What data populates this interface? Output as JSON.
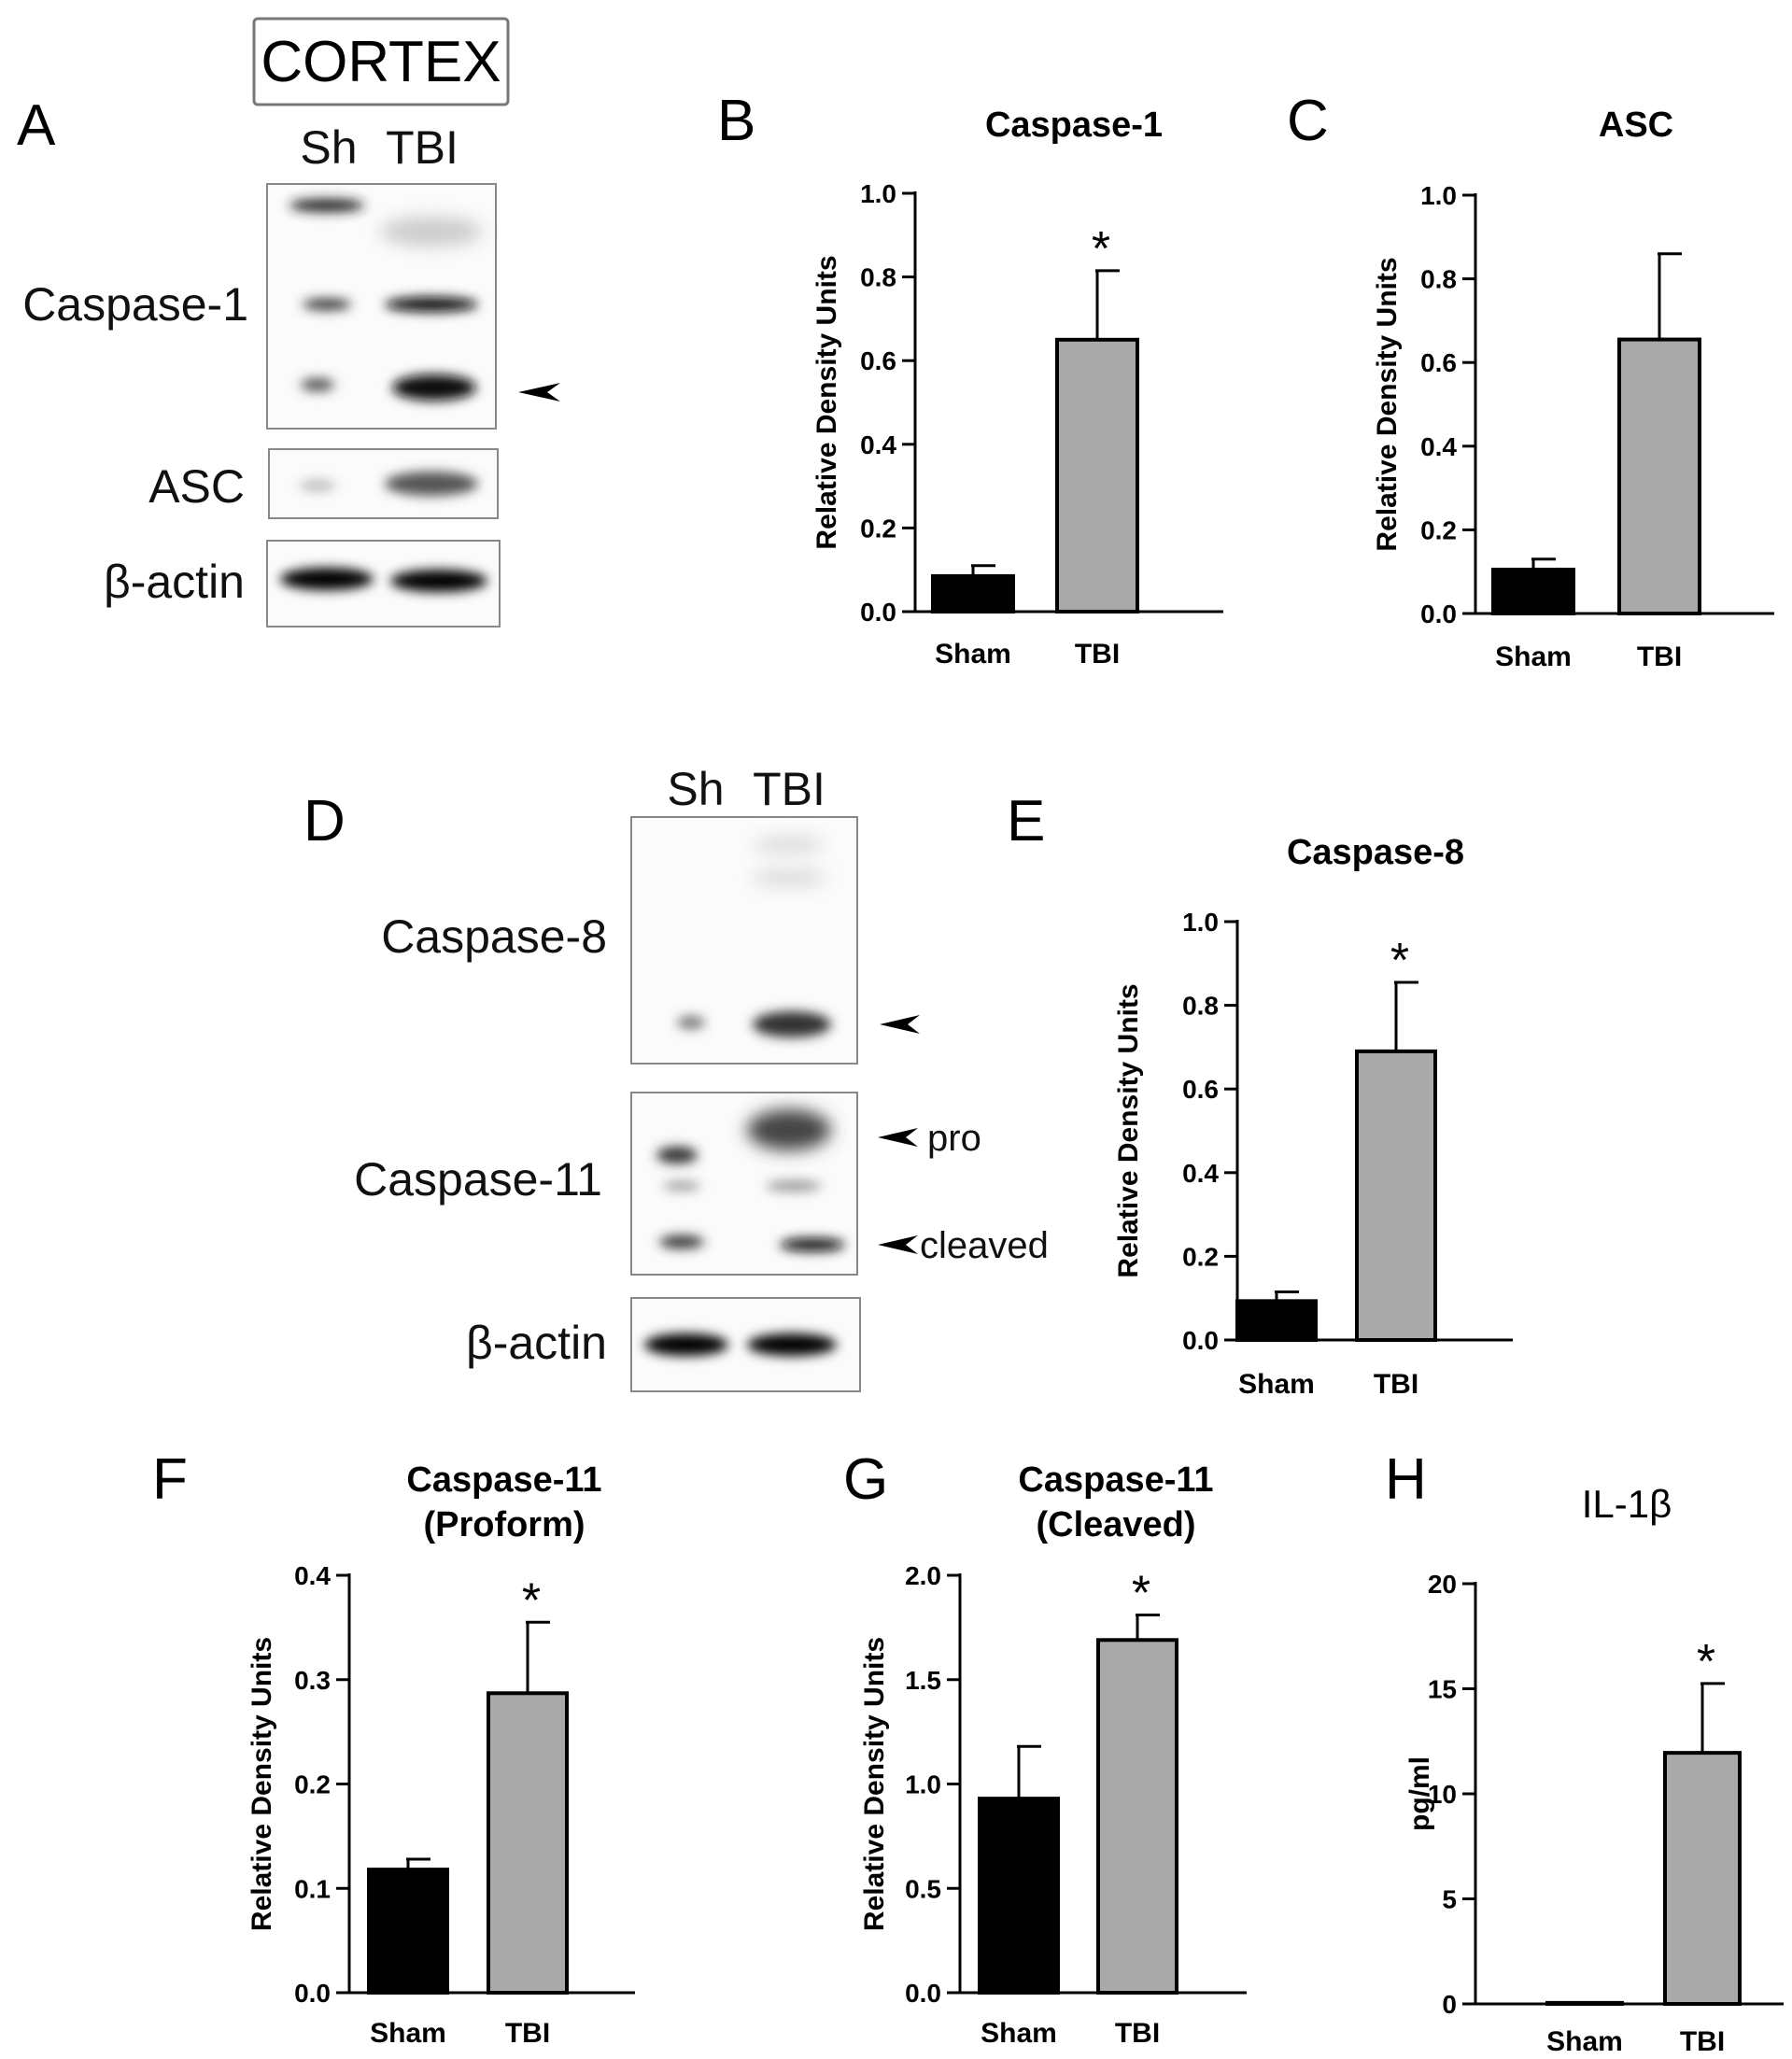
{
  "cortex_label": "CORTEX",
  "blot_A": {
    "letter": "A",
    "lanes": [
      "Sh",
      "TBI"
    ],
    "labels": [
      "Caspase-1",
      "ASC",
      "β-actin"
    ]
  },
  "blot_D": {
    "letter": "D",
    "lanes": [
      "Sh",
      "TBI"
    ],
    "labels": [
      "Caspase-8",
      "Caspase-11",
      "β-actin"
    ],
    "annotations": [
      "pro",
      "cleaved"
    ]
  },
  "colors": {
    "sham": "#000000",
    "tbi": "#a9a9a9",
    "axis": "#000000"
  },
  "chart_data": [
    {
      "letter": "B",
      "type": "bar",
      "title": "Caspase-1",
      "categories": [
        "Sham",
        "TBI"
      ],
      "values": [
        0.085,
        0.65
      ],
      "errors": [
        0.025,
        0.165
      ],
      "significant": [
        false,
        true
      ],
      "ylabel": "Relative Density Units",
      "ylim": [
        0,
        1.0
      ],
      "yticks": [
        "0.0",
        "0.2",
        "0.4",
        "0.6",
        "0.8",
        "1.0"
      ]
    },
    {
      "letter": "C",
      "type": "bar",
      "title": "ASC",
      "categories": [
        "Sham",
        "TBI"
      ],
      "values": [
        0.105,
        0.655
      ],
      "errors": [
        0.025,
        0.205
      ],
      "significant": [
        false,
        false
      ],
      "ylabel": "Relative Density Units",
      "ylim": [
        0,
        1.0
      ],
      "yticks": [
        "0.0",
        "0.2",
        "0.4",
        "0.6",
        "0.8",
        "1.0"
      ]
    },
    {
      "letter": "E",
      "type": "bar",
      "title": "Caspase-8",
      "categories": [
        "Sham",
        "TBI"
      ],
      "values": [
        0.093,
        0.69
      ],
      "errors": [
        0.022,
        0.165
      ],
      "significant": [
        false,
        true
      ],
      "ylabel": "Relative Density Units",
      "ylim": [
        0,
        1.0
      ],
      "yticks": [
        "0.0",
        "0.2",
        "0.4",
        "0.6",
        "0.8",
        "1.0"
      ]
    },
    {
      "letter": "F",
      "type": "bar",
      "title": "Caspase-11",
      "subtitle": "(Proform)",
      "categories": [
        "Sham",
        "TBI"
      ],
      "values": [
        0.118,
        0.287
      ],
      "errors": [
        0.01,
        0.068
      ],
      "significant": [
        false,
        true
      ],
      "ylabel": "Relative Density Units",
      "ylim": [
        0,
        0.4
      ],
      "yticks": [
        "0.0",
        "0.1",
        "0.2",
        "0.3",
        "0.4"
      ]
    },
    {
      "letter": "G",
      "type": "bar",
      "title": "Caspase-11",
      "subtitle": "(Cleaved)",
      "categories": [
        "Sham",
        "TBI"
      ],
      "values": [
        0.93,
        1.69
      ],
      "errors": [
        0.25,
        0.12
      ],
      "significant": [
        false,
        true
      ],
      "ylabel": "Relative Density Units",
      "ylim": [
        0,
        2.0
      ],
      "yticks": [
        "0.0",
        "0.5",
        "1.0",
        "1.5",
        "2.0"
      ]
    },
    {
      "letter": "H",
      "type": "bar",
      "title": "IL-1β",
      "categories": [
        "Sham",
        "TBI"
      ],
      "values": [
        0.05,
        11.95
      ],
      "errors": [
        0,
        3.3
      ],
      "significant": [
        false,
        true
      ],
      "ylabel": "pg/ml",
      "ylim": [
        0,
        20
      ],
      "yticks": [
        "0",
        "5",
        "10",
        "15",
        "20"
      ]
    }
  ]
}
